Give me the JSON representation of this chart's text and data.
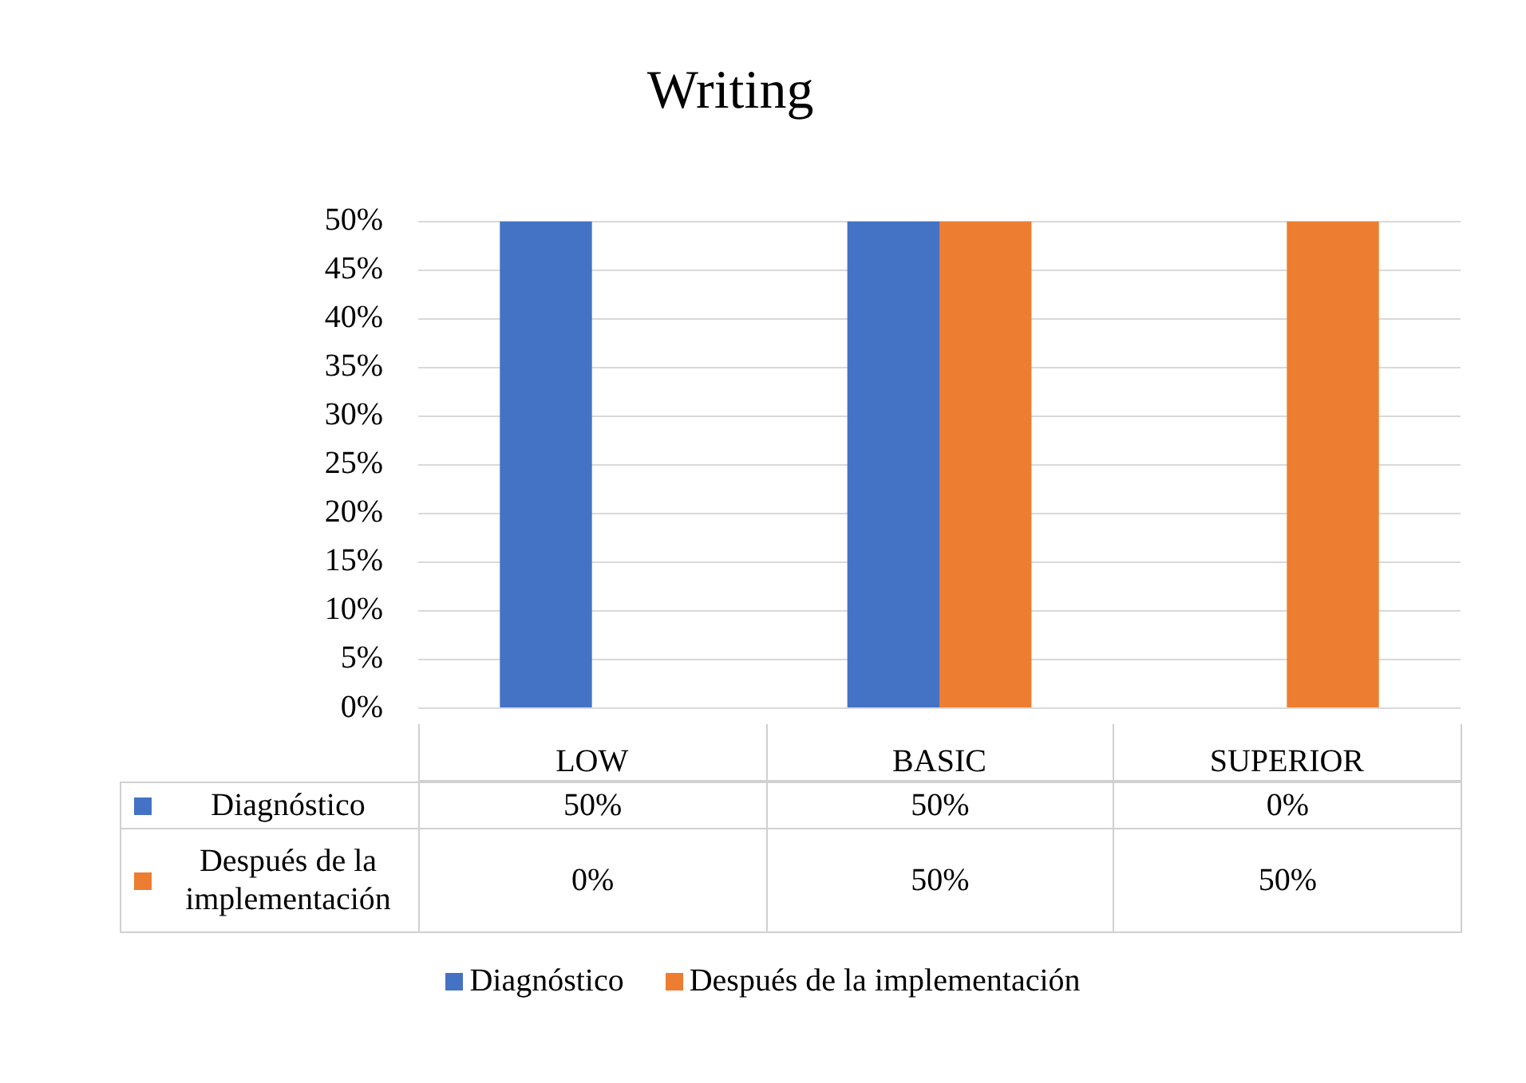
{
  "chart_data": {
    "type": "bar",
    "title": "Writing",
    "categories": [
      "LOW",
      "BASIC",
      "SUPERIOR"
    ],
    "series": [
      {
        "name": "Diagnóstico",
        "color": "#4472c4",
        "values": [
          50,
          50,
          0
        ],
        "value_labels": [
          "50%",
          "50%",
          "0%"
        ]
      },
      {
        "name": "Después de la implementación",
        "color": "#ed7d31",
        "values": [
          0,
          50,
          50
        ],
        "value_labels": [
          "0%",
          "50%",
          "50%"
        ]
      }
    ],
    "ylim": [
      0,
      50
    ],
    "yticks": [
      {
        "value": 0,
        "label": "0%"
      },
      {
        "value": 5,
        "label": "5%"
      },
      {
        "value": 10,
        "label": "10%"
      },
      {
        "value": 15,
        "label": "15%"
      },
      {
        "value": 20,
        "label": "20%"
      },
      {
        "value": 25,
        "label": "25%"
      },
      {
        "value": 30,
        "label": "30%"
      },
      {
        "value": 35,
        "label": "35%"
      },
      {
        "value": 40,
        "label": "40%"
      },
      {
        "value": 45,
        "label": "45%"
      },
      {
        "value": 50,
        "label": "50%"
      }
    ],
    "grid": "y",
    "legend": "bottom"
  }
}
